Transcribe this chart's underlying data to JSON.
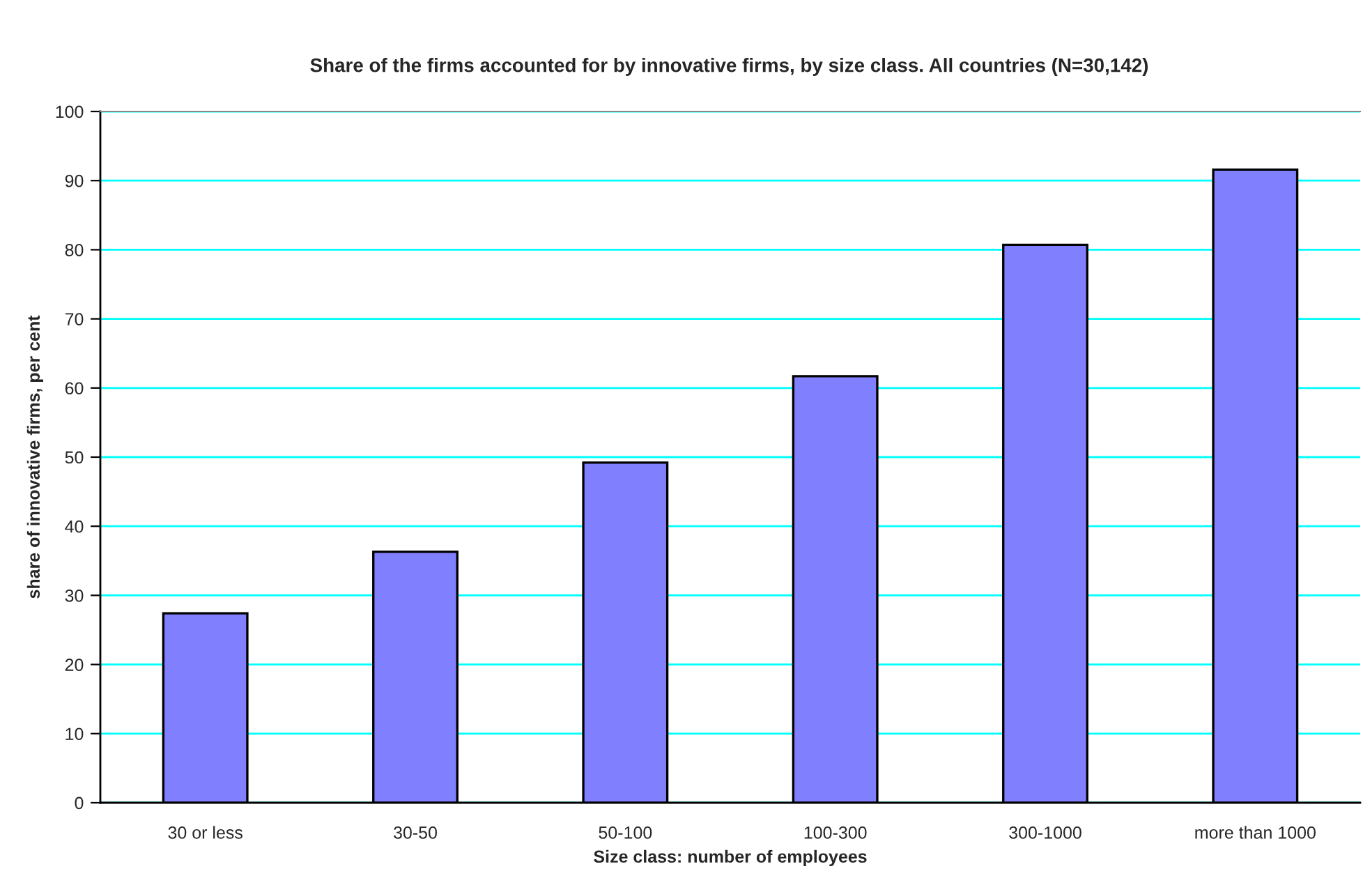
{
  "chart_data": {
    "type": "bar",
    "title": "Share of the firms accounted for by innovative firms, by size class. All countries (N=30,142)",
    "xlabel": "Size class: number of employees",
    "ylabel": "share of innovative firms, per cent",
    "categories": [
      "30 or less",
      "30-50",
      "50-100",
      "100-300",
      "300-1000",
      "more than 1000"
    ],
    "values": [
      27.4,
      36.3,
      49.2,
      61.7,
      80.7,
      91.6
    ],
    "color": "#8080ff",
    "ylim": [
      0,
      100
    ],
    "yticks": [
      0,
      10,
      20,
      30,
      40,
      50,
      60,
      70,
      80,
      90,
      100
    ],
    "grid": "y"
  }
}
